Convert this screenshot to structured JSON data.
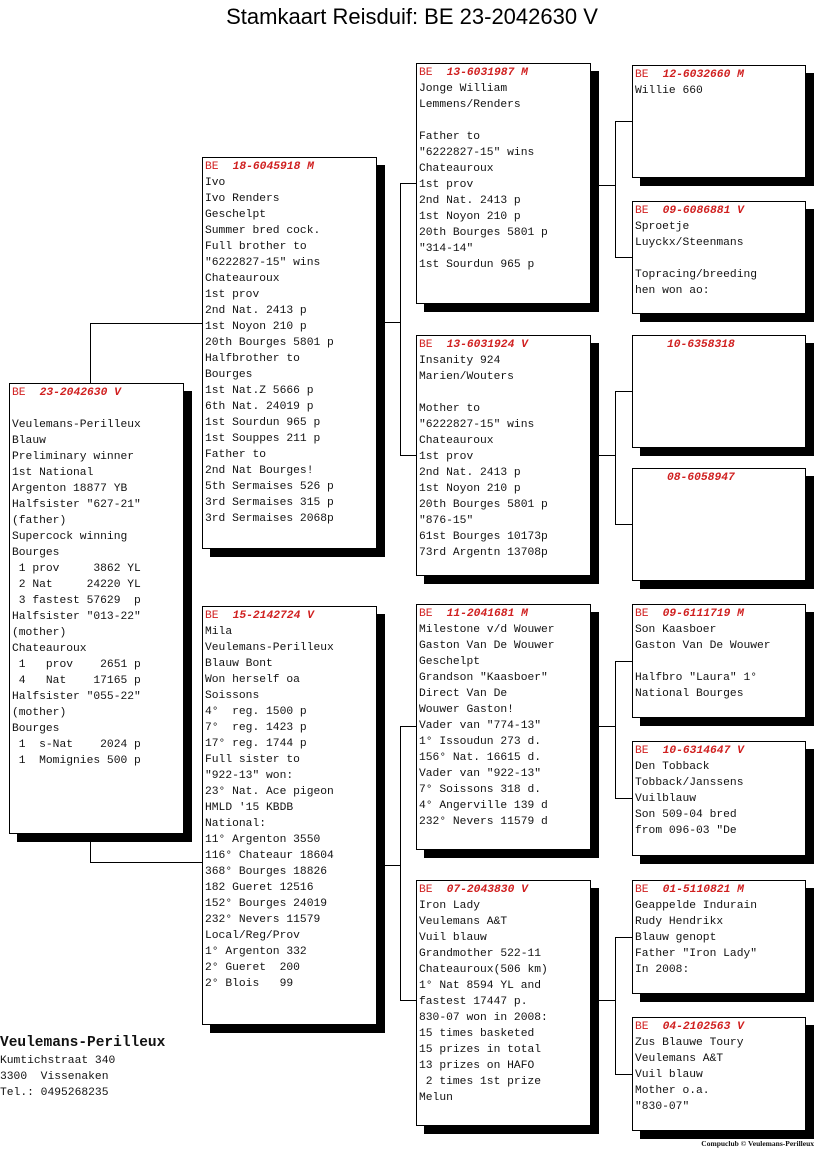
{
  "title": "Stamkaart Reisduif: BE  23-2042630 V",
  "boxes": {
    "subject": {
      "prefix": "BE",
      "ring": "23-2042630 V",
      "lines": [
        "",
        "Veulemans-Perilleux",
        "Blauw",
        "Preliminary winner",
        "1st National",
        "Argenton 18877 YB",
        "Halfsister \"627-21\"",
        "(father)",
        "Supercock winning",
        "Bourges",
        " 1 prov     3862 YL",
        " 2 Nat     24220 YL",
        " 3 fastest 57629  p",
        "Halfsister \"013-22\"",
        "(mother)",
        "Chateauroux",
        " 1   prov    2651 p",
        " 4   Nat    17165 p",
        "Halfsister \"055-22\"",
        "(mother)",
        "Bourges",
        " 1  s-Nat    2024 p",
        " 1  Momignies 500 p"
      ]
    },
    "father": {
      "prefix": "BE",
      "ring": "18-6045918 M",
      "lines": [
        "Ivo",
        "Ivo Renders",
        "Geschelpt",
        "Summer bred cock.",
        "Full brother to",
        "\"6222827-15\" wins",
        "Chateauroux",
        "1st prov",
        "2nd Nat. 2413 p",
        "1st Noyon 210 p",
        "20th Bourges 5801 p",
        "Halfbrother to",
        "Bourges",
        "1st Nat.Z 5666 p",
        "6th Nat. 24019 p",
        "1st Sourdun 965 p",
        "1st Souppes 211 p",
        "Father to",
        "2nd Nat Bourges!",
        "5th Sermaises 526 p",
        "3rd Sermaises 315 p",
        "3rd Sermaises 2068p"
      ]
    },
    "mother": {
      "prefix": "BE",
      "ring": "15-2142724 V",
      "lines": [
        "Mila",
        "Veulemans-Perilleux",
        "Blauw Bont",
        "Won herself oa",
        "Soissons",
        "4°  reg. 1500 p",
        "7°  reg. 1423 p",
        "17° reg. 1744 p",
        "Full sister to",
        "\"922-13\" won:",
        "23° Nat. Ace pigeon",
        "HMLD '15 KBDB",
        "National:",
        "11° Argenton 3550",
        "116° Chateaur 18604",
        "368° Bourges 18826",
        "182 Gueret 12516",
        "152° Bourges 24019",
        "232° Nevers 11579",
        "Local/Reg/Prov",
        "1° Argenton 332",
        "2° Gueret  200",
        "2° Blois   99"
      ]
    },
    "ff": {
      "prefix": "BE",
      "ring": "13-6031987 M",
      "lines": [
        "Jonge William",
        "Lemmens/Renders",
        "",
        "Father to",
        "\"6222827-15\" wins",
        "Chateauroux",
        "1st prov",
        "2nd Nat. 2413 p",
        "1st Noyon 210 p",
        "20th Bourges 5801 p",
        "\"314-14\"",
        "1st Sourdun 965 p"
      ]
    },
    "fm": {
      "prefix": "BE",
      "ring": "13-6031924 V",
      "lines": [
        "Insanity 924",
        "Marien/Wouters",
        "",
        "Mother to",
        "\"6222827-15\" wins",
        "Chateauroux",
        "1st prov",
        "2nd Nat. 2413 p",
        "1st Noyon 210 p",
        "20th Bourges 5801 p",
        "\"876-15\"",
        "61st Bourges 10173p",
        "73rd Argentn 13708p"
      ]
    },
    "mf": {
      "prefix": "BE",
      "ring": "11-2041681 M",
      "lines": [
        "Milestone v/d Wouwer",
        "Gaston Van De Wouwer",
        "Geschelpt",
        "Grandson \"Kaasboer\"",
        "Direct Van De",
        "Wouwer Gaston!",
        "Vader van \"774-13\"",
        "1° Issoudun 273 d.",
        "156° Nat. 16615 d.",
        "Vader van \"922-13\"",
        "7° Soissons 318 d.",
        "4° Angerville 139 d",
        "232° Nevers 11579 d"
      ]
    },
    "mm": {
      "prefix": "BE",
      "ring": "07-2043830 V",
      "lines": [
        "Iron Lady",
        "Veulemans A&T",
        "Vuil blauw",
        "Grandmother 522-11",
        "Chateauroux(506 km)",
        "1° Nat 8594 YL and",
        "fastest 17447 p.",
        "830-07 won in 2008:",
        "15 times basketed",
        "15 prizes in total",
        "13 prizes on HAFO",
        " 2 times 1st prize",
        "Melun"
      ]
    },
    "fff": {
      "prefix": "BE",
      "ring": "12-6032660 M",
      "lines": [
        "Willie 660"
      ]
    },
    "ffm": {
      "prefix": "BE",
      "ring": "09-6086881 V",
      "lines": [
        "Sproetje",
        "Luyckx/Steenmans",
        "",
        "Topracing/breeding",
        "hen won ao:"
      ]
    },
    "fmf": {
      "prefix": "",
      "ring": "10-6358318",
      "lines": []
    },
    "fmm": {
      "prefix": "",
      "ring": "08-6058947",
      "lines": []
    },
    "mff": {
      "prefix": "BE",
      "ring": "09-6111719 M",
      "lines": [
        "Son Kaasboer",
        "Gaston Van De Wouwer",
        "",
        "Halfbro \"Laura\" 1°",
        "National Bourges"
      ]
    },
    "mfm": {
      "prefix": "BE",
      "ring": "10-6314647 V",
      "lines": [
        "Den Tobback",
        "Tobback/Janssens",
        "Vuilblauw",
        "Son 509-04 bred",
        "from 096-03 \"De"
      ]
    },
    "mmf": {
      "prefix": "BE",
      "ring": "01-5110821 M",
      "lines": [
        "Geappelde Indurain",
        "Rudy Hendrikx",
        "Blauw genopt",
        "Father \"Iron Lady\"",
        "In 2008:"
      ]
    },
    "mmm": {
      "prefix": "BE",
      "ring": "04-2102563 V",
      "lines": [
        "Zus Blauwe Toury",
        "Veulemans A&T",
        "Vuil blauw",
        "Mother o.a.",
        "\"830-07\""
      ]
    }
  },
  "owner": {
    "name": "Veulemans-Perilleux",
    "street": "Kumtichstraat 340",
    "city": "3300  Vissenaken",
    "phone": "Tel.: 0495268235"
  },
  "footer": "Compuclub © Veulemans-Perilleux",
  "colors": {
    "ring": "#d02020",
    "text": "#111111",
    "shadow": "#000000"
  }
}
